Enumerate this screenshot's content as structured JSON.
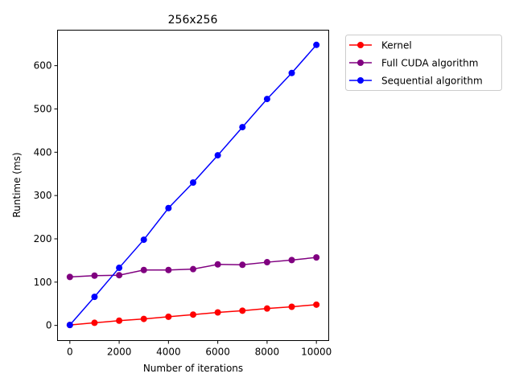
{
  "chart_data": {
    "type": "line",
    "title": "256x256",
    "xlabel": "Number of iterations",
    "ylabel": "Runtime (ms)",
    "xlim": [
      -500,
      10500
    ],
    "ylim": [
      -35,
      682
    ],
    "xticks": [
      0,
      2000,
      4000,
      6000,
      8000,
      10000
    ],
    "yticks": [
      0,
      100,
      200,
      300,
      400,
      500,
      600
    ],
    "grid": false,
    "legend_position": "outside-right-top",
    "x": [
      0,
      1000,
      2000,
      3000,
      4000,
      5000,
      6000,
      7000,
      8000,
      9000,
      10000
    ],
    "series": [
      {
        "name": "Kernel",
        "color": "#ff0000",
        "marker": "circle",
        "values": [
          1,
          6,
          11,
          15,
          20,
          25,
          30,
          34,
          39,
          43,
          48
        ]
      },
      {
        "name": "Full CUDA algorithm",
        "color": "#800080",
        "marker": "circle",
        "values": [
          112,
          115,
          116,
          128,
          128,
          130,
          141,
          140,
          146,
          151,
          157
        ]
      },
      {
        "name": "Sequential algorithm",
        "color": "#0000ff",
        "marker": "circle",
        "values": [
          1,
          66,
          133,
          198,
          271,
          330,
          393,
          458,
          523,
          583,
          648
        ]
      }
    ]
  }
}
